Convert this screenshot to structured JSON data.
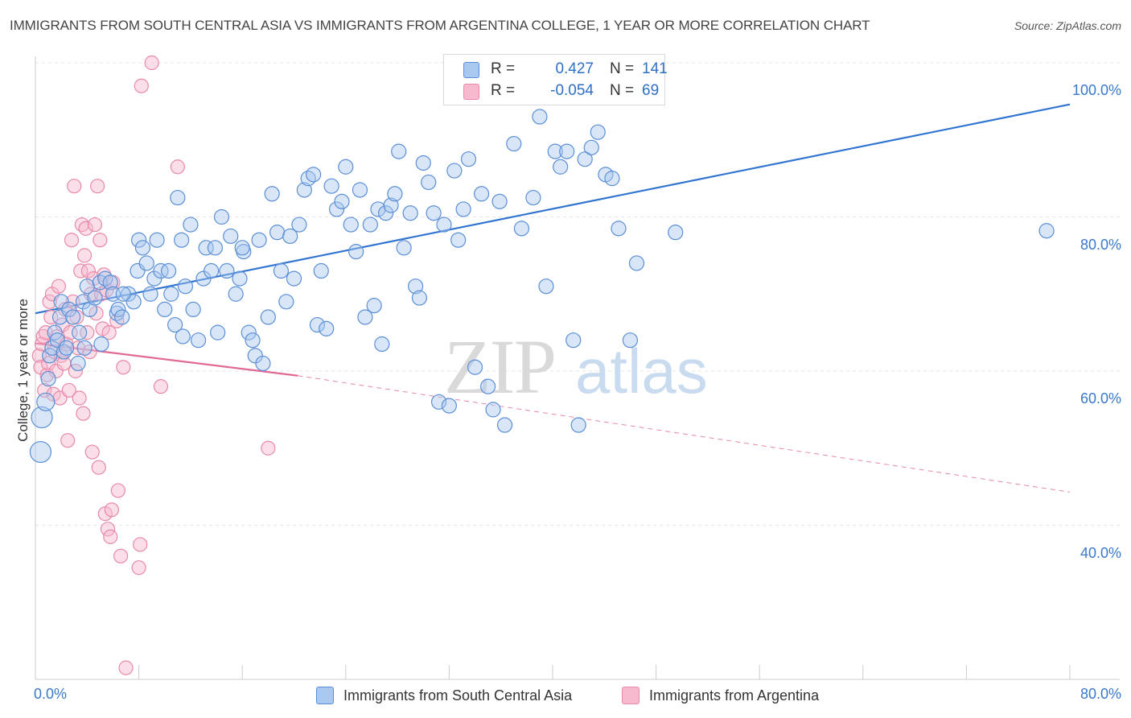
{
  "title": "IMMIGRANTS FROM SOUTH CENTRAL ASIA VS IMMIGRANTS FROM ARGENTINA COLLEGE, 1 YEAR OR MORE CORRELATION CHART",
  "source": "Source: ZipAtlas.com",
  "watermark": {
    "zip": "ZIP",
    "atlas": "atlas"
  },
  "legend": {
    "rows": [
      {
        "r_label": "R =",
        "r_value": "0.427",
        "n_label": "N =",
        "n_value": "141"
      },
      {
        "r_label": "R =",
        "r_value": "-0.054",
        "n_label": "N =",
        "n_value": "69"
      }
    ]
  },
  "colors": {
    "blue_fill": "#a9c8ef",
    "blue_stroke": "#5b8fd6",
    "blue_line": "#2f74d0",
    "pink_fill": "#f6b9cd",
    "pink_stroke": "#e889a8",
    "pink_line": "#e06a95",
    "grid": "#e6e6e6",
    "tick_text": "#3a78c9"
  },
  "chart_data": {
    "type": "scatter",
    "title": "IMMIGRANTS FROM SOUTH CENTRAL ASIA VS IMMIGRANTS FROM ARGENTINA COLLEGE, 1 YEAR OR MORE CORRELATION CHART",
    "xlabel": "",
    "ylabel": "College, 1 year or more",
    "xlim": [
      0,
      80
    ],
    "ylim": [
      20,
      102
    ],
    "x_ticks": [
      {
        "value": 0,
        "label": "0.0%"
      },
      {
        "value": 80,
        "label": "80.0%"
      }
    ],
    "y_ticks": [
      {
        "value": 40,
        "label": "40.0%"
      },
      {
        "value": 60,
        "label": "60.0%"
      },
      {
        "value": 80,
        "label": "80.0%"
      },
      {
        "value": 100,
        "label": "100.0%"
      }
    ],
    "grid": true,
    "legend_position": "bottom",
    "series": [
      {
        "name": "Immigrants from South Central Asia",
        "color": "#a9c8ef",
        "trend": {
          "x": [
            0,
            80
          ],
          "y": [
            67.5,
            94.6
          ],
          "style": "solid"
        },
        "points": [
          [
            0.4,
            49.5
          ],
          [
            0.5,
            54
          ],
          [
            0.8,
            56
          ],
          [
            1.0,
            59
          ],
          [
            1.1,
            62
          ],
          [
            1.3,
            63
          ],
          [
            1.5,
            65
          ],
          [
            1.7,
            64
          ],
          [
            1.9,
            67
          ],
          [
            2.0,
            69
          ],
          [
            2.2,
            62.5
          ],
          [
            2.4,
            63
          ],
          [
            2.6,
            68
          ],
          [
            2.9,
            67
          ],
          [
            3.3,
            61
          ],
          [
            3.4,
            65
          ],
          [
            3.7,
            69
          ],
          [
            4.0,
            71
          ],
          [
            4.2,
            68
          ],
          [
            4.6,
            69.5
          ],
          [
            5.0,
            71.5
          ],
          [
            5.1,
            63.5
          ],
          [
            5.4,
            72
          ],
          [
            5.8,
            71.5
          ],
          [
            6.0,
            70
          ],
          [
            6.3,
            67.5
          ],
          [
            6.4,
            68
          ],
          [
            6.7,
            67
          ],
          [
            7.2,
            70
          ],
          [
            7.6,
            69
          ],
          [
            7.9,
            73
          ],
          [
            8.0,
            77
          ],
          [
            8.3,
            76
          ],
          [
            8.6,
            74
          ],
          [
            8.9,
            70
          ],
          [
            9.2,
            72
          ],
          [
            9.4,
            77
          ],
          [
            9.7,
            73
          ],
          [
            10.0,
            68
          ],
          [
            10.3,
            73
          ],
          [
            10.5,
            70
          ],
          [
            10.8,
            66
          ],
          [
            11.0,
            82.5
          ],
          [
            11.3,
            77
          ],
          [
            11.6,
            71
          ],
          [
            12.0,
            79
          ],
          [
            12.2,
            68
          ],
          [
            12.6,
            64
          ],
          [
            13.0,
            72
          ],
          [
            13.2,
            76
          ],
          [
            13.6,
            73
          ],
          [
            13.9,
            76
          ],
          [
            14.1,
            65
          ],
          [
            14.4,
            80
          ],
          [
            14.8,
            73
          ],
          [
            15.1,
            77.5
          ],
          [
            15.5,
            70
          ],
          [
            15.8,
            72
          ],
          [
            16.1,
            75.5
          ],
          [
            16.5,
            65
          ],
          [
            16.8,
            64
          ],
          [
            17.0,
            62
          ],
          [
            17.3,
            77
          ],
          [
            17.6,
            61
          ],
          [
            18.0,
            67
          ],
          [
            18.3,
            83
          ],
          [
            18.7,
            78
          ],
          [
            19.0,
            73
          ],
          [
            19.4,
            69
          ],
          [
            19.7,
            77.5
          ],
          [
            20.0,
            72
          ],
          [
            20.4,
            79
          ],
          [
            20.8,
            83.5
          ],
          [
            21.1,
            85
          ],
          [
            21.5,
            85.5
          ],
          [
            21.8,
            66
          ],
          [
            22.1,
            73
          ],
          [
            22.5,
            65.5
          ],
          [
            22.9,
            84
          ],
          [
            23.3,
            81
          ],
          [
            23.7,
            82
          ],
          [
            24.0,
            86.5
          ],
          [
            24.4,
            79
          ],
          [
            24.8,
            75.5
          ],
          [
            25.1,
            83.5
          ],
          [
            25.5,
            67
          ],
          [
            25.9,
            79
          ],
          [
            26.2,
            68.5
          ],
          [
            26.5,
            81
          ],
          [
            26.8,
            63.5
          ],
          [
            27.1,
            80.5
          ],
          [
            27.5,
            81.5
          ],
          [
            27.8,
            83
          ],
          [
            28.1,
            88.5
          ],
          [
            28.5,
            76
          ],
          [
            29.0,
            80.5
          ],
          [
            29.4,
            71
          ],
          [
            29.7,
            69.5
          ],
          [
            30.0,
            87
          ],
          [
            30.4,
            84.5
          ],
          [
            30.8,
            80.5
          ],
          [
            31.2,
            56
          ],
          [
            31.6,
            79
          ],
          [
            32.0,
            55.5
          ],
          [
            32.4,
            86
          ],
          [
            32.7,
            77
          ],
          [
            33.1,
            81
          ],
          [
            33.5,
            87.5
          ],
          [
            34.0,
            60.5
          ],
          [
            34.5,
            83
          ],
          [
            35.0,
            58
          ],
          [
            35.4,
            55
          ],
          [
            35.9,
            82
          ],
          [
            36.3,
            53
          ],
          [
            37.0,
            89.5
          ],
          [
            37.6,
            78.5
          ],
          [
            38.5,
            82.5
          ],
          [
            39.0,
            93
          ],
          [
            39.5,
            71
          ],
          [
            40.2,
            88.5
          ],
          [
            40.6,
            86.5
          ],
          [
            41.1,
            88.5
          ],
          [
            41.6,
            64
          ],
          [
            42.0,
            53
          ],
          [
            42.5,
            87.5
          ],
          [
            43.0,
            89
          ],
          [
            43.5,
            91
          ],
          [
            44.1,
            85.5
          ],
          [
            44.6,
            85
          ],
          [
            45.1,
            78.5
          ],
          [
            46.0,
            64
          ],
          [
            46.5,
            74
          ],
          [
            49.5,
            78
          ],
          [
            78.2,
            78.2
          ],
          [
            3.8,
            63
          ],
          [
            6.8,
            70
          ],
          [
            11.4,
            64.5
          ],
          [
            16.0,
            76
          ]
        ],
        "sizes_note": "three larger markers near x=0.4–0.8"
      },
      {
        "name": "Immigrants from Argentina",
        "color": "#f6b9cd",
        "trend": {
          "x": [
            0,
            20.3
          ],
          "y": [
            63.6,
            59.4
          ],
          "dashed_extension_to": [
            80,
            44.3
          ],
          "style": "solid-then-dashed"
        },
        "points": [
          [
            0.3,
            62
          ],
          [
            0.4,
            60.5
          ],
          [
            0.5,
            63.5
          ],
          [
            0.6,
            64.5
          ],
          [
            0.7,
            57.5
          ],
          [
            0.8,
            65
          ],
          [
            0.9,
            59.5
          ],
          [
            1.0,
            61
          ],
          [
            1.1,
            69
          ],
          [
            1.2,
            67
          ],
          [
            1.3,
            70
          ],
          [
            1.4,
            57
          ],
          [
            1.5,
            62.5
          ],
          [
            1.6,
            60
          ],
          [
            1.7,
            64.5
          ],
          [
            1.8,
            71
          ],
          [
            1.9,
            56.5
          ],
          [
            2.0,
            62
          ],
          [
            2.1,
            66
          ],
          [
            2.2,
            61
          ],
          [
            2.3,
            68
          ],
          [
            2.4,
            63.5
          ],
          [
            2.5,
            51
          ],
          [
            2.6,
            57.5
          ],
          [
            2.7,
            65
          ],
          [
            2.8,
            77
          ],
          [
            2.9,
            69
          ],
          [
            3.0,
            84
          ],
          [
            3.1,
            60
          ],
          [
            3.2,
            67
          ],
          [
            3.3,
            63
          ],
          [
            3.4,
            56.5
          ],
          [
            3.5,
            73
          ],
          [
            3.6,
            79
          ],
          [
            3.7,
            54.5
          ],
          [
            3.8,
            75
          ],
          [
            3.9,
            78.5
          ],
          [
            4.0,
            65
          ],
          [
            4.1,
            73
          ],
          [
            4.2,
            62.5
          ],
          [
            4.3,
            70
          ],
          [
            4.4,
            49.5
          ],
          [
            4.5,
            72
          ],
          [
            4.6,
            79
          ],
          [
            4.7,
            67.5
          ],
          [
            4.8,
            84
          ],
          [
            4.9,
            47.5
          ],
          [
            5.0,
            77
          ],
          [
            5.1,
            70
          ],
          [
            5.2,
            65.5
          ],
          [
            5.3,
            72.5
          ],
          [
            5.4,
            41.5
          ],
          [
            5.5,
            70.5
          ],
          [
            5.6,
            39.5
          ],
          [
            5.7,
            65
          ],
          [
            5.8,
            38.5
          ],
          [
            5.9,
            42
          ],
          [
            6.0,
            71.5
          ],
          [
            6.3,
            66.5
          ],
          [
            6.4,
            44.5
          ],
          [
            6.6,
            36
          ],
          [
            6.8,
            60.5
          ],
          [
            7.0,
            21.5
          ],
          [
            8.0,
            34.5
          ],
          [
            8.1,
            37.5
          ],
          [
            8.2,
            97
          ],
          [
            9.0,
            100
          ],
          [
            9.7,
            58
          ],
          [
            11.0,
            86.5
          ],
          [
            18.0,
            50
          ]
        ]
      }
    ]
  },
  "bottom_legend": [
    {
      "label": "Immigrants from South Central Asia"
    },
    {
      "label": "Immigrants from Argentina"
    }
  ]
}
